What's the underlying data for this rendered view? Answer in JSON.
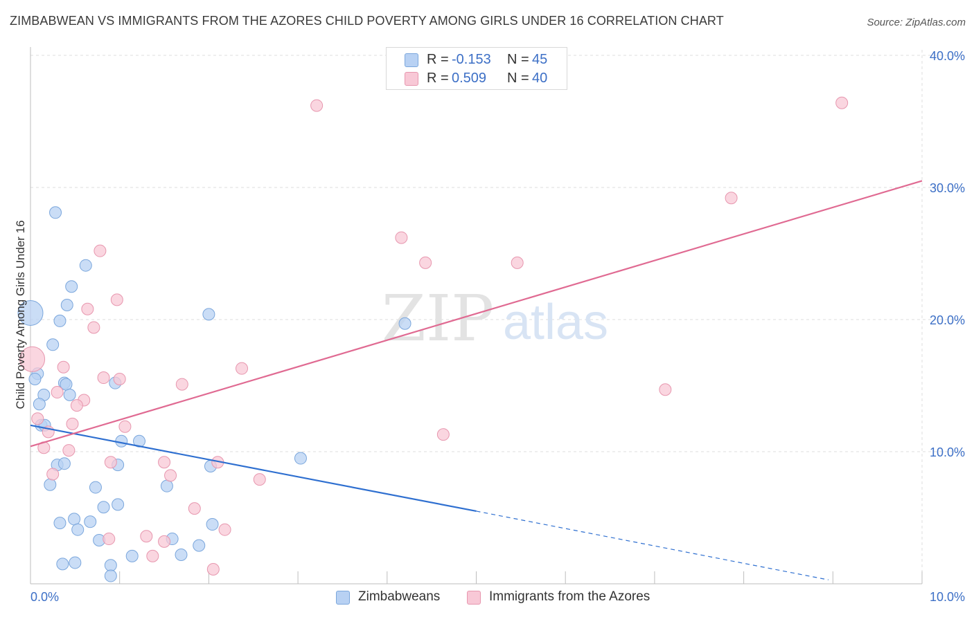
{
  "title": "ZIMBABWEAN VS IMMIGRANTS FROM THE AZORES CHILD POVERTY AMONG GIRLS UNDER 16 CORRELATION CHART",
  "source": "Source: ZipAtlas.com",
  "watermark": {
    "zip": "ZIP",
    "atlas": "atlas"
  },
  "legend_top": [
    {
      "r_label": "R =",
      "r_value": "-0.153",
      "n_label": "N =",
      "n_value": "45"
    },
    {
      "r_label": "R =",
      "r_value": "0.509",
      "n_label": "N =",
      "n_value": "40"
    }
  ],
  "legend_bottom": [
    "Zimbabweans",
    "Immigrants from the Azores"
  ],
  "colors": {
    "blue_fill": "#b8d1f3",
    "blue_stroke": "#7aa6dc",
    "blue_line": "#2e6fd0",
    "pink_fill": "#f8c8d6",
    "pink_stroke": "#e796ae",
    "pink_line": "#e06a92",
    "tick_text": "#3c6fc6",
    "grid": "#dcdcdc"
  },
  "chart_data": {
    "type": "scatter",
    "title": "ZIMBABWEAN VS IMMIGRANTS FROM THE AZORES CHILD POVERTY AMONG GIRLS UNDER 16 CORRELATION CHART",
    "xlabel": "",
    "ylabel": "Child Poverty Among Girls Under 16",
    "xlim": [
      0,
      10
    ],
    "ylim": [
      0,
      40
    ],
    "x_tick_labels": [
      {
        "value": 0,
        "label": "0.0%"
      },
      {
        "value": 10,
        "label": "10.0%"
      }
    ],
    "y_tick_labels": [
      {
        "value": 10,
        "label": "10.0%"
      },
      {
        "value": 20,
        "label": "20.0%"
      },
      {
        "value": 30,
        "label": "30.0%"
      },
      {
        "value": 40,
        "label": "40.0%"
      }
    ],
    "grid": true,
    "legend_position": "top-center",
    "series": [
      {
        "name": "Zimbabweans",
        "color": "#b8d1f3",
        "points": [
          [
            0.28,
            28.1
          ],
          [
            0.62,
            24.1
          ],
          [
            0.46,
            22.5
          ],
          [
            0.41,
            21.1
          ],
          [
            0.33,
            19.9
          ],
          [
            0.0,
            20.5
          ],
          [
            2.0,
            20.4
          ],
          [
            4.2,
            19.7
          ],
          [
            0.25,
            18.1
          ],
          [
            0.08,
            15.9
          ],
          [
            0.05,
            15.5
          ],
          [
            0.38,
            15.2
          ],
          [
            0.4,
            15.1
          ],
          [
            0.15,
            14.3
          ],
          [
            0.44,
            14.3
          ],
          [
            0.1,
            13.6
          ],
          [
            0.12,
            12.0
          ],
          [
            0.16,
            12.0
          ],
          [
            0.95,
            15.2
          ],
          [
            1.02,
            10.8
          ],
          [
            1.22,
            10.8
          ],
          [
            0.3,
            9.0
          ],
          [
            0.38,
            9.1
          ],
          [
            0.98,
            9.0
          ],
          [
            2.02,
            8.9
          ],
          [
            3.03,
            9.5
          ],
          [
            0.22,
            7.5
          ],
          [
            0.73,
            7.3
          ],
          [
            1.53,
            7.4
          ],
          [
            0.82,
            5.8
          ],
          [
            0.98,
            6.0
          ],
          [
            0.49,
            4.9
          ],
          [
            0.33,
            4.6
          ],
          [
            0.67,
            4.7
          ],
          [
            0.53,
            4.1
          ],
          [
            1.59,
            3.4
          ],
          [
            0.77,
            3.3
          ],
          [
            2.04,
            4.5
          ],
          [
            1.89,
            2.9
          ],
          [
            1.69,
            2.2
          ],
          [
            1.14,
            2.1
          ],
          [
            0.36,
            1.5
          ],
          [
            0.5,
            1.6
          ],
          [
            0.9,
            1.4
          ],
          [
            0.9,
            0.6
          ]
        ]
      },
      {
        "name": "Immigrants from the Azores",
        "color": "#f8c8d6",
        "points": [
          [
            3.21,
            36.2
          ],
          [
            9.1,
            36.4
          ],
          [
            7.86,
            29.2
          ],
          [
            4.16,
            26.2
          ],
          [
            4.43,
            24.3
          ],
          [
            5.46,
            24.3
          ],
          [
            0.78,
            25.2
          ],
          [
            0.97,
            21.5
          ],
          [
            0.64,
            20.8
          ],
          [
            0.71,
            19.4
          ],
          [
            0.02,
            17.0
          ],
          [
            0.37,
            16.4
          ],
          [
            2.37,
            16.3
          ],
          [
            0.82,
            15.6
          ],
          [
            1.0,
            15.5
          ],
          [
            1.7,
            15.1
          ],
          [
            0.3,
            14.5
          ],
          [
            0.6,
            13.9
          ],
          [
            7.12,
            14.7
          ],
          [
            0.52,
            13.5
          ],
          [
            0.08,
            12.5
          ],
          [
            0.47,
            12.1
          ],
          [
            1.06,
            11.9
          ],
          [
            0.2,
            11.5
          ],
          [
            4.63,
            11.3
          ],
          [
            0.15,
            10.3
          ],
          [
            0.43,
            10.1
          ],
          [
            0.9,
            9.2
          ],
          [
            1.5,
            9.2
          ],
          [
            2.1,
            9.2
          ],
          [
            0.25,
            8.3
          ],
          [
            1.57,
            8.2
          ],
          [
            2.57,
            7.9
          ],
          [
            1.84,
            5.7
          ],
          [
            1.3,
            3.6
          ],
          [
            0.88,
            3.4
          ],
          [
            1.5,
            3.2
          ],
          [
            2.18,
            4.1
          ],
          [
            1.37,
            2.1
          ],
          [
            2.05,
            1.1
          ]
        ]
      }
    ],
    "trendlines": [
      {
        "series": "Zimbabweans",
        "x1": 0,
        "y1": 12.0,
        "x2": 5.0,
        "y2": 5.5,
        "dashed_to_x": 8.95,
        "dashed_to_y": 0.3
      },
      {
        "series": "Immigrants from the Azores",
        "x1": 0,
        "y1": 10.4,
        "x2": 10.0,
        "y2": 30.5
      }
    ]
  }
}
